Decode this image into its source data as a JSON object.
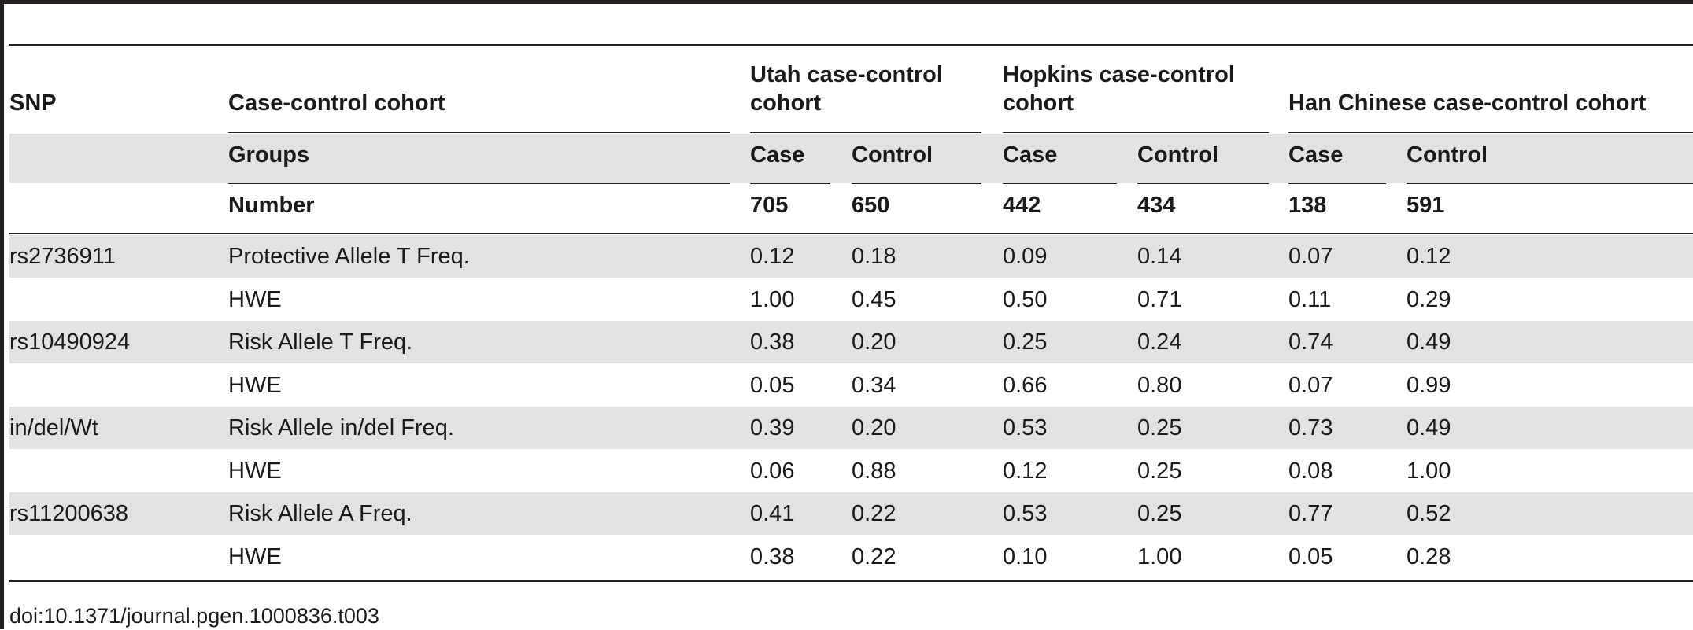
{
  "table": {
    "header": {
      "snp": "SNP",
      "cohort_label": "Case-control cohort",
      "utah": [
        "Utah case-control",
        "cohort"
      ],
      "hopkins": [
        "Hopkins case-control",
        "cohort"
      ],
      "han": "Han Chinese case-control cohort"
    },
    "groups_row": {
      "label": "Groups",
      "cols": [
        "Case",
        "Control",
        "Case",
        "Control",
        "Case",
        "Control"
      ]
    },
    "number_row": {
      "label": "Number",
      "cols": [
        "705",
        "650",
        "442",
        "434",
        "138",
        "591"
      ]
    },
    "rows": [
      {
        "snp": "rs2736911",
        "label": "Protective Allele T Freq.",
        "vals": [
          "0.12",
          "0.18",
          "0.09",
          "0.14",
          "0.07",
          "0.12"
        ]
      },
      {
        "snp": "",
        "label": "HWE",
        "vals": [
          "1.00",
          "0.45",
          "0.50",
          "0.71",
          "0.11",
          "0.29"
        ]
      },
      {
        "snp": "rs10490924",
        "label": "Risk Allele T Freq.",
        "vals": [
          "0.38",
          "0.20",
          "0.25",
          "0.24",
          "0.74",
          "0.49"
        ]
      },
      {
        "snp": "",
        "label": "HWE",
        "vals": [
          "0.05",
          "0.34",
          "0.66",
          "0.80",
          "0.07",
          "0.99"
        ]
      },
      {
        "snp": "in/del/Wt",
        "label": "Risk Allele in/del Freq.",
        "vals": [
          "0.39",
          "0.20",
          "0.53",
          "0.25",
          "0.73",
          "0.49"
        ]
      },
      {
        "snp": "",
        "label": "HWE",
        "vals": [
          "0.06",
          "0.88",
          "0.12",
          "0.25",
          "0.08",
          "1.00"
        ]
      },
      {
        "snp": "rs11200638",
        "label": "Risk Allele A Freq.",
        "vals": [
          "0.41",
          "0.22",
          "0.53",
          "0.25",
          "0.77",
          "0.52"
        ]
      },
      {
        "snp": "",
        "label": "HWE",
        "vals": [
          "0.38",
          "0.22",
          "0.10",
          "1.00",
          "0.05",
          "0.28"
        ]
      }
    ]
  },
  "doi": "doi:10.1371/journal.pgen.1000836.t003"
}
